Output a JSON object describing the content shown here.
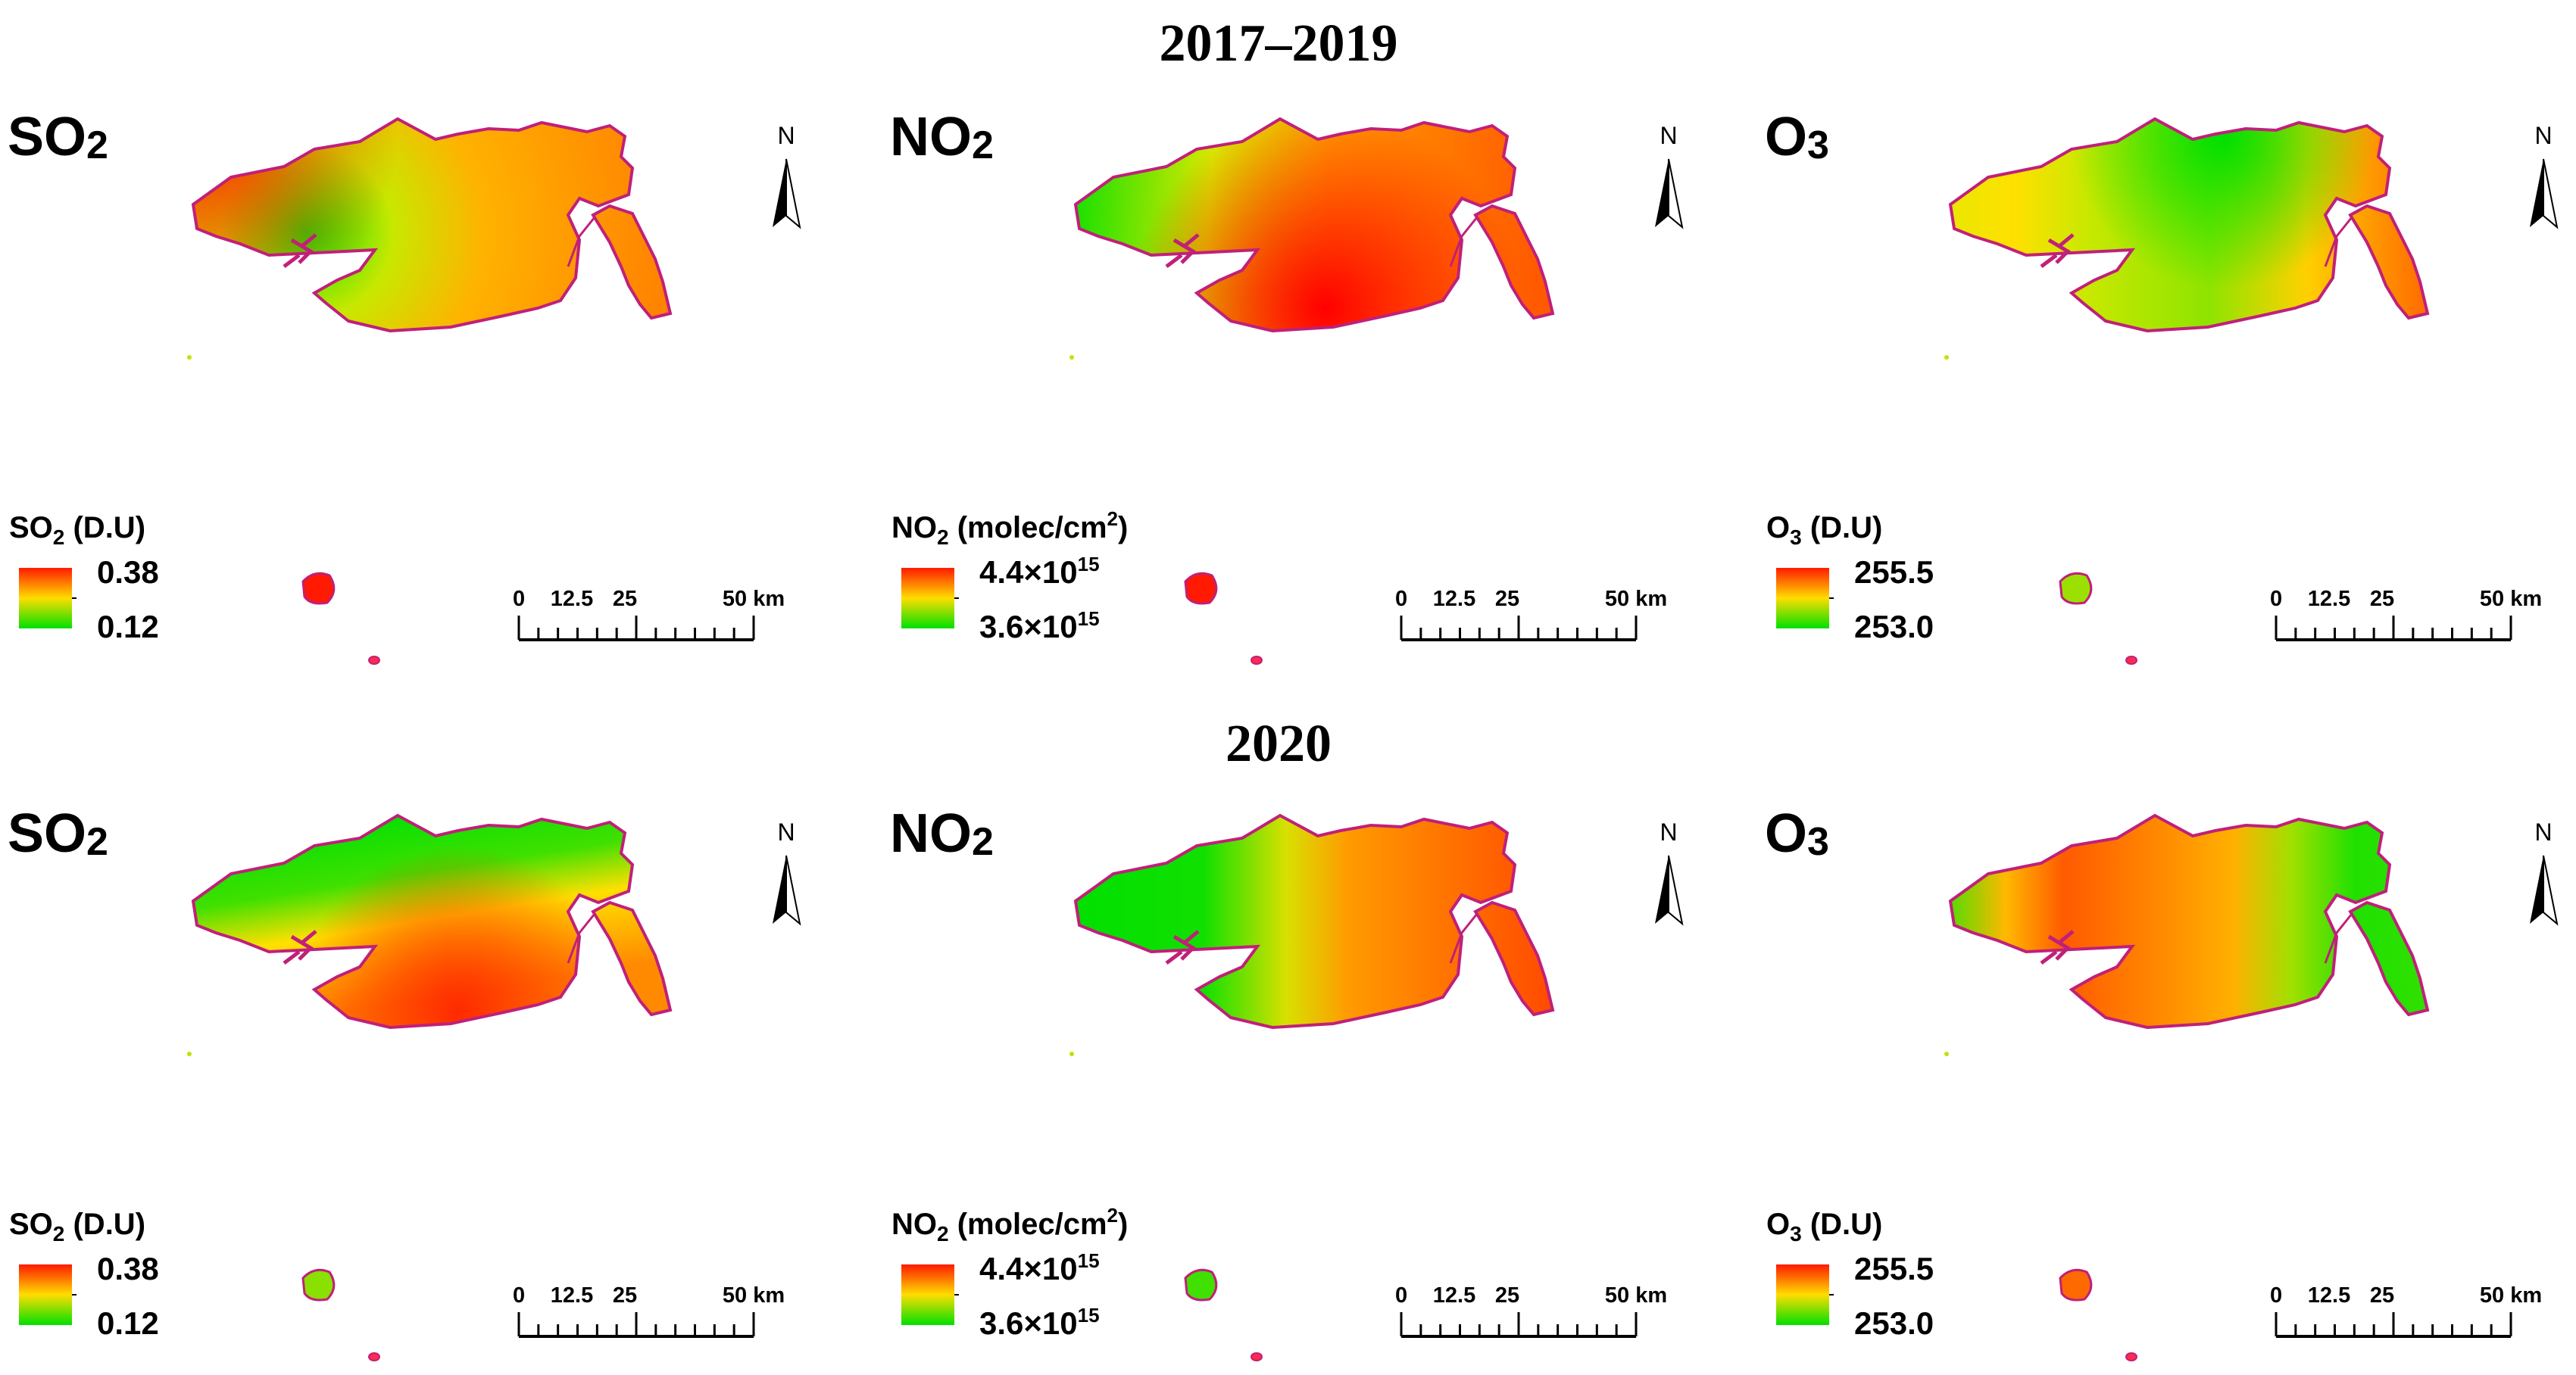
{
  "figure": {
    "periods": [
      "2017–2019",
      "2020"
    ]
  },
  "scale_bar": {
    "ticks": [
      "0",
      "12.5",
      "25",
      "50 km"
    ]
  },
  "north_label": "N",
  "colors": {
    "high": "#ff1a00",
    "mid": "#ffdd00",
    "low": "#00e000",
    "outline": "#c0207a"
  },
  "panels": [
    {
      "row": 0,
      "col": 0,
      "pollutant": "SO",
      "sub": "2",
      "legend_pre": "SO",
      "legend_sub": "2",
      "legend_post": " (D.U)",
      "legend_sup": "",
      "legend_close": "",
      "max_label": "0.38",
      "min_label": "0.12",
      "max_base": "",
      "max_exp": "",
      "min_base": "",
      "min_exp": "",
      "pattern": "so2_2019",
      "island_color": "#ff1a00"
    },
    {
      "row": 0,
      "col": 1,
      "pollutant": "NO",
      "sub": "2",
      "legend_pre": "NO",
      "legend_sub": "2",
      "legend_post": " (molec/cm",
      "legend_sup": "2",
      "legend_close": ")",
      "max_label": "",
      "min_label": "",
      "max_base": "4.4×10",
      "max_exp": "15",
      "min_base": "3.6×10",
      "min_exp": "15",
      "pattern": "no2_2019",
      "island_color": "#ff1a00"
    },
    {
      "row": 0,
      "col": 2,
      "pollutant": "O",
      "sub": "3",
      "legend_pre": "O",
      "legend_sub": "3",
      "legend_post": " (D.U)",
      "legend_sup": "",
      "legend_close": "",
      "max_label": "255.5",
      "min_label": "253.0",
      "max_base": "",
      "max_exp": "",
      "min_base": "",
      "min_exp": "",
      "pattern": "o3_2019",
      "island_color": "#9be000"
    },
    {
      "row": 1,
      "col": 0,
      "pollutant": "SO",
      "sub": "2",
      "legend_pre": "SO",
      "legend_sub": "2",
      "legend_post": " (D.U)",
      "legend_sup": "",
      "legend_close": "",
      "max_label": "0.38",
      "min_label": "0.12",
      "max_base": "",
      "max_exp": "",
      "min_base": "",
      "min_exp": "",
      "pattern": "so2_2020",
      "island_color": "#8ae000"
    },
    {
      "row": 1,
      "col": 1,
      "pollutant": "NO",
      "sub": "2",
      "legend_pre": "NO",
      "legend_sub": "2",
      "legend_post": " (molec/cm",
      "legend_sup": "2",
      "legend_close": ")",
      "max_label": "",
      "min_label": "",
      "max_base": "4.4×10",
      "max_exp": "15",
      "min_base": "3.6×10",
      "min_exp": "15",
      "pattern": "no2_2020",
      "island_color": "#40e000"
    },
    {
      "row": 1,
      "col": 2,
      "pollutant": "O",
      "sub": "3",
      "legend_pre": "O",
      "legend_sub": "3",
      "legend_post": " (D.U)",
      "legend_sup": "",
      "legend_close": "",
      "max_label": "255.5",
      "min_label": "253.0",
      "max_base": "",
      "max_exp": "",
      "min_base": "",
      "min_exp": "",
      "pattern": "o3_2020",
      "island_color": "#ff6a00"
    }
  ]
}
